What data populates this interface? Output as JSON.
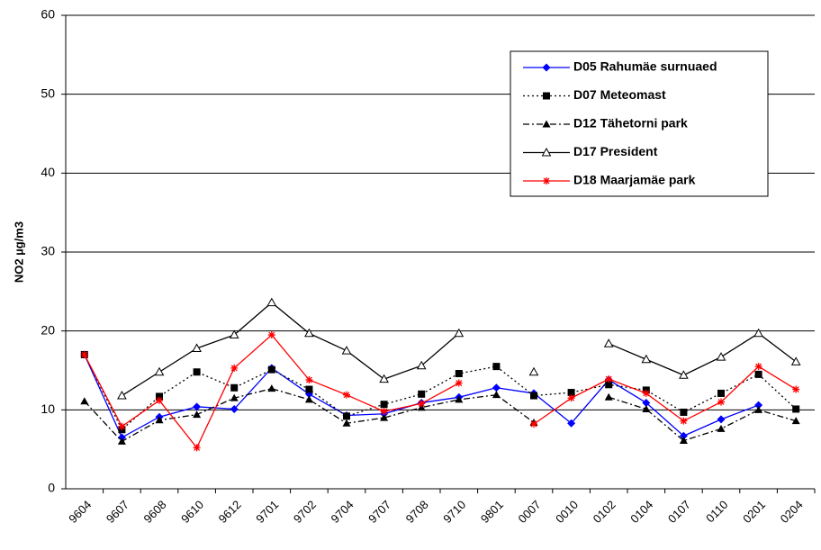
{
  "chart_data": {
    "type": "line",
    "y_label": "NO2 µg/m3",
    "categories": [
      "9604",
      "9607",
      "9608",
      "9610",
      "9612",
      "9701",
      "9702",
      "9704",
      "9707",
      "9708",
      "9710",
      "9801",
      "0007",
      "0010",
      "0102",
      "0104",
      "0107",
      "0110",
      "0201",
      "0204"
    ],
    "ylim": [
      0,
      60
    ],
    "yticks": [
      0,
      10,
      20,
      30,
      40,
      50,
      60
    ],
    "grid": true,
    "legend": "top-right",
    "series": [
      {
        "name": "D05 Rahumäe surnuaed",
        "color": "#0000ff",
        "dash": "solid",
        "marker": "diamond",
        "values": [
          17,
          6.5,
          9.1,
          10.4,
          10.1,
          15.3,
          12.0,
          9.3,
          9.5,
          10.9,
          11.6,
          12.8,
          12.1,
          8.3,
          13.8,
          10.9,
          6.7,
          8.8,
          10.6,
          null
        ]
      },
      {
        "name": "D07 Meteomast",
        "color": "#000000",
        "dash": "dotted",
        "marker": "square",
        "values": [
          17,
          7.5,
          11.7,
          14.8,
          12.8,
          15.1,
          12.6,
          9.2,
          10.7,
          12.0,
          14.6,
          15.5,
          11.8,
          12.2,
          13.2,
          12.5,
          9.7,
          12.1,
          14.5,
          10.1
        ]
      },
      {
        "name": "D12 Tähetorni park",
        "color": "#000000",
        "dash": "dashdot",
        "marker": "triangle",
        "values": [
          11.1,
          6.0,
          8.7,
          9.4,
          11.5,
          12.7,
          11.3,
          8.3,
          9.0,
          10.3,
          11.3,
          11.9,
          8.4,
          null,
          11.6,
          10.1,
          6.1,
          7.6,
          10.0,
          8.6
        ]
      },
      {
        "name": "D17 President",
        "color": "#000000",
        "dash": "solid",
        "marker": "triangle-open",
        "values": [
          null,
          11.8,
          14.8,
          17.8,
          19.5,
          23.6,
          19.7,
          17.5,
          13.9,
          15.6,
          19.7,
          null,
          14.8,
          null,
          18.4,
          16.4,
          14.4,
          16.7,
          19.7,
          16.1
        ]
      },
      {
        "name": "D18 Maarjamäe park",
        "color": "#ff0000",
        "dash": "solid",
        "marker": "star",
        "values": [
          17,
          7.9,
          11.2,
          5.2,
          15.3,
          19.5,
          13.8,
          11.9,
          9.8,
          10.8,
          13.4,
          null,
          8.2,
          11.5,
          13.9,
          12.1,
          8.6,
          11.0,
          15.5,
          12.6
        ]
      }
    ]
  }
}
